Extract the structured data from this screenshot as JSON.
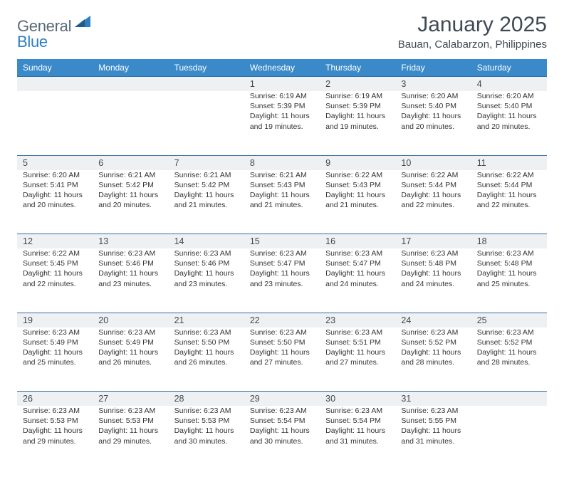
{
  "brand": {
    "part1": "General",
    "part2": "Blue"
  },
  "title": "January 2025",
  "location": "Bauan, Calabarzon, Philippines",
  "colors": {
    "header_bg": "#3a8ac9",
    "header_text": "#ffffff",
    "daynum_bg": "#eef0f2",
    "daynum_border": "#2f6fa8",
    "text": "#333333",
    "title_color": "#404a54",
    "logo_gray": "#5a6a78",
    "logo_blue": "#2d7fc4",
    "page_bg": "#ffffff"
  },
  "fonts": {
    "family": "Arial",
    "title_size_pt": 22,
    "body_size_pt": 8,
    "header_size_pt": 9
  },
  "layout": {
    "columns": 7,
    "first_day_column": 3,
    "days_in_month": 31,
    "weeks": 5
  },
  "weekdays": [
    "Sunday",
    "Monday",
    "Tuesday",
    "Wednesday",
    "Thursday",
    "Friday",
    "Saturday"
  ],
  "days": [
    {
      "n": 1,
      "sunrise": "6:19 AM",
      "sunset": "5:39 PM",
      "dl_h": 11,
      "dl_m": 19
    },
    {
      "n": 2,
      "sunrise": "6:19 AM",
      "sunset": "5:39 PM",
      "dl_h": 11,
      "dl_m": 19
    },
    {
      "n": 3,
      "sunrise": "6:20 AM",
      "sunset": "5:40 PM",
      "dl_h": 11,
      "dl_m": 20
    },
    {
      "n": 4,
      "sunrise": "6:20 AM",
      "sunset": "5:40 PM",
      "dl_h": 11,
      "dl_m": 20
    },
    {
      "n": 5,
      "sunrise": "6:20 AM",
      "sunset": "5:41 PM",
      "dl_h": 11,
      "dl_m": 20
    },
    {
      "n": 6,
      "sunrise": "6:21 AM",
      "sunset": "5:42 PM",
      "dl_h": 11,
      "dl_m": 20
    },
    {
      "n": 7,
      "sunrise": "6:21 AM",
      "sunset": "5:42 PM",
      "dl_h": 11,
      "dl_m": 21
    },
    {
      "n": 8,
      "sunrise": "6:21 AM",
      "sunset": "5:43 PM",
      "dl_h": 11,
      "dl_m": 21
    },
    {
      "n": 9,
      "sunrise": "6:22 AM",
      "sunset": "5:43 PM",
      "dl_h": 11,
      "dl_m": 21
    },
    {
      "n": 10,
      "sunrise": "6:22 AM",
      "sunset": "5:44 PM",
      "dl_h": 11,
      "dl_m": 22
    },
    {
      "n": 11,
      "sunrise": "6:22 AM",
      "sunset": "5:44 PM",
      "dl_h": 11,
      "dl_m": 22
    },
    {
      "n": 12,
      "sunrise": "6:22 AM",
      "sunset": "5:45 PM",
      "dl_h": 11,
      "dl_m": 22
    },
    {
      "n": 13,
      "sunrise": "6:23 AM",
      "sunset": "5:46 PM",
      "dl_h": 11,
      "dl_m": 23
    },
    {
      "n": 14,
      "sunrise": "6:23 AM",
      "sunset": "5:46 PM",
      "dl_h": 11,
      "dl_m": 23
    },
    {
      "n": 15,
      "sunrise": "6:23 AM",
      "sunset": "5:47 PM",
      "dl_h": 11,
      "dl_m": 23
    },
    {
      "n": 16,
      "sunrise": "6:23 AM",
      "sunset": "5:47 PM",
      "dl_h": 11,
      "dl_m": 24
    },
    {
      "n": 17,
      "sunrise": "6:23 AM",
      "sunset": "5:48 PM",
      "dl_h": 11,
      "dl_m": 24
    },
    {
      "n": 18,
      "sunrise": "6:23 AM",
      "sunset": "5:48 PM",
      "dl_h": 11,
      "dl_m": 25
    },
    {
      "n": 19,
      "sunrise": "6:23 AM",
      "sunset": "5:49 PM",
      "dl_h": 11,
      "dl_m": 25
    },
    {
      "n": 20,
      "sunrise": "6:23 AM",
      "sunset": "5:49 PM",
      "dl_h": 11,
      "dl_m": 26
    },
    {
      "n": 21,
      "sunrise": "6:23 AM",
      "sunset": "5:50 PM",
      "dl_h": 11,
      "dl_m": 26
    },
    {
      "n": 22,
      "sunrise": "6:23 AM",
      "sunset": "5:50 PM",
      "dl_h": 11,
      "dl_m": 27
    },
    {
      "n": 23,
      "sunrise": "6:23 AM",
      "sunset": "5:51 PM",
      "dl_h": 11,
      "dl_m": 27
    },
    {
      "n": 24,
      "sunrise": "6:23 AM",
      "sunset": "5:52 PM",
      "dl_h": 11,
      "dl_m": 28
    },
    {
      "n": 25,
      "sunrise": "6:23 AM",
      "sunset": "5:52 PM",
      "dl_h": 11,
      "dl_m": 28
    },
    {
      "n": 26,
      "sunrise": "6:23 AM",
      "sunset": "5:53 PM",
      "dl_h": 11,
      "dl_m": 29
    },
    {
      "n": 27,
      "sunrise": "6:23 AM",
      "sunset": "5:53 PM",
      "dl_h": 11,
      "dl_m": 29
    },
    {
      "n": 28,
      "sunrise": "6:23 AM",
      "sunset": "5:53 PM",
      "dl_h": 11,
      "dl_m": 30
    },
    {
      "n": 29,
      "sunrise": "6:23 AM",
      "sunset": "5:54 PM",
      "dl_h": 11,
      "dl_m": 30
    },
    {
      "n": 30,
      "sunrise": "6:23 AM",
      "sunset": "5:54 PM",
      "dl_h": 11,
      "dl_m": 31
    },
    {
      "n": 31,
      "sunrise": "6:23 AM",
      "sunset": "5:55 PM",
      "dl_h": 11,
      "dl_m": 31
    }
  ],
  "labels": {
    "sunrise_prefix": "Sunrise: ",
    "sunset_prefix": "Sunset: ",
    "daylight_prefix": "Daylight: ",
    "hours_word": " hours",
    "and_word": "and ",
    "minutes_word": " minutes."
  }
}
